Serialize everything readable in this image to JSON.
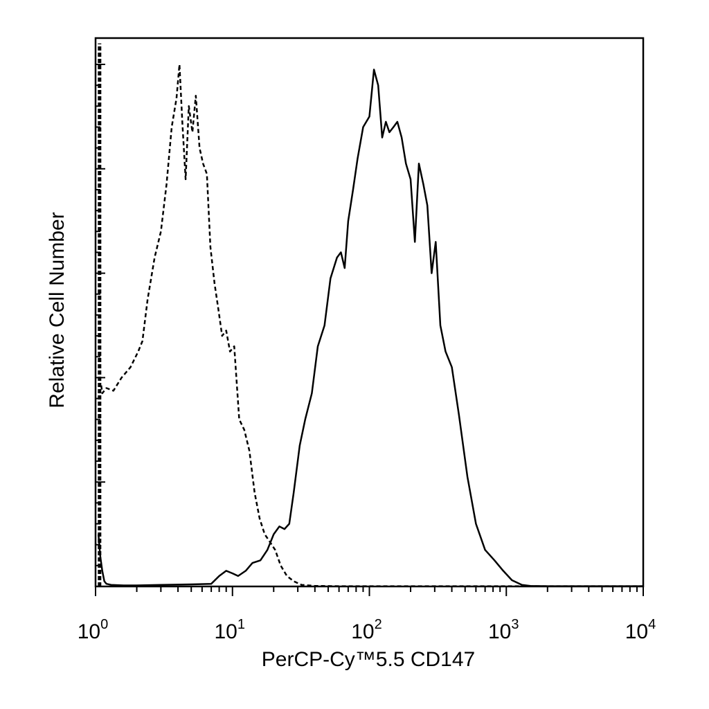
{
  "chart_data": {
    "type": "line",
    "title": "",
    "xlabel": "PerCP-Cy™5.5 CD147",
    "ylabel": "Relative Cell Number",
    "x_scale": "log",
    "xlim": [
      1,
      10000
    ],
    "ylim": [
      0,
      100
    ],
    "grid": false,
    "legend": "none",
    "x_ticks": [
      {
        "base": "10",
        "exp": "0"
      },
      {
        "base": "10",
        "exp": "1"
      },
      {
        "base": "10",
        "exp": "2"
      },
      {
        "base": "10",
        "exp": "3"
      },
      {
        "base": "10",
        "exp": "4"
      }
    ],
    "series": [
      {
        "style": "dashed",
        "color": "#000000",
        "x": [
          1.1,
          1.12,
          1.2,
          1.35,
          1.55,
          1.8,
          2.05,
          2.2,
          2.4,
          2.7,
          3.0,
          3.3,
          3.6,
          3.9,
          4.1,
          4.3,
          4.55,
          4.8,
          5.1,
          5.4,
          5.75,
          6.1,
          6.5,
          6.9,
          7.4,
          7.9,
          8.4,
          9.0,
          9.6,
          10.3,
          11.2,
          12.2,
          13.3,
          14.5,
          15.8,
          17.2,
          18.8,
          20.5,
          22.5,
          25.0,
          28.0,
          32.0,
          40.0,
          60.0,
          100.0,
          300.0,
          1000.0,
          10000.0
        ],
        "y": [
          38.5,
          37.0,
          38.0,
          37.5,
          40.0,
          42.0,
          45.0,
          47.0,
          55.0,
          63.0,
          68.0,
          77.0,
          88.0,
          93.5,
          100.0,
          89.0,
          78.0,
          92.0,
          87.0,
          94.0,
          84.0,
          81.0,
          79.0,
          65.0,
          58.0,
          53.0,
          48.0,
          49.0,
          45.0,
          46.0,
          32.0,
          30.0,
          26.0,
          18.0,
          13.0,
          10.0,
          8.5,
          7.0,
          4.0,
          2.0,
          1.0,
          0.3,
          0.1,
          0.05,
          0.05,
          0.05,
          0.05,
          0.05
        ]
      },
      {
        "style": "solid",
        "color": "#000000",
        "x": [
          1.05,
          1.08,
          1.12,
          1.16,
          1.2,
          1.3,
          1.6,
          2.0,
          3.0,
          5.0,
          7.0,
          8.0,
          9.0,
          10.0,
          11.0,
          12.5,
          14.0,
          16.0,
          18.0,
          20.0,
          22.0,
          24.0,
          26.0,
          28.0,
          31.0,
          34.0,
          38.0,
          42.0,
          47.0,
          52.0,
          58.0,
          62.0,
          66.0,
          70.0,
          76.0,
          82.0,
          90.0,
          100.0,
          108.0,
          116.0,
          124.0,
          132.0,
          140.0,
          150.0,
          160.0,
          172.0,
          185.0,
          200.0,
          215.0,
          230.0,
          248.0,
          265.0,
          285.0,
          305.0,
          330.0,
          360.0,
          400.0,
          450.0,
          520.0,
          600.0,
          700.0,
          820.0,
          950.0,
          1100.0,
          1300.0,
          1500.0,
          2000.0,
          10000.0
        ],
        "y": [
          10.0,
          6.0,
          3.0,
          1.0,
          0.5,
          0.3,
          0.2,
          0.2,
          0.3,
          0.4,
          0.5,
          2.0,
          3.0,
          2.5,
          2.0,
          3.0,
          4.5,
          5.0,
          7.0,
          10.0,
          11.5,
          11.0,
          12.0,
          18.0,
          27.0,
          32.0,
          37.0,
          46.0,
          50.0,
          59.0,
          63.0,
          64.0,
          61.0,
          70.0,
          76.0,
          82.0,
          88.0,
          90.0,
          99.0,
          96.0,
          86.0,
          89.0,
          87.0,
          88.0,
          89.0,
          86.0,
          81.0,
          78.0,
          66.0,
          81.0,
          77.0,
          73.0,
          60.0,
          66.0,
          50.0,
          45.0,
          42.0,
          33.0,
          21.0,
          12.0,
          7.0,
          5.0,
          3.0,
          1.2,
          0.3,
          0.1,
          0.05,
          0.05
        ]
      },
      {
        "style": "thick-dashed",
        "color": "#000000",
        "x": [
          1.07,
          1.07
        ],
        "y": [
          0,
          104
        ]
      }
    ]
  }
}
